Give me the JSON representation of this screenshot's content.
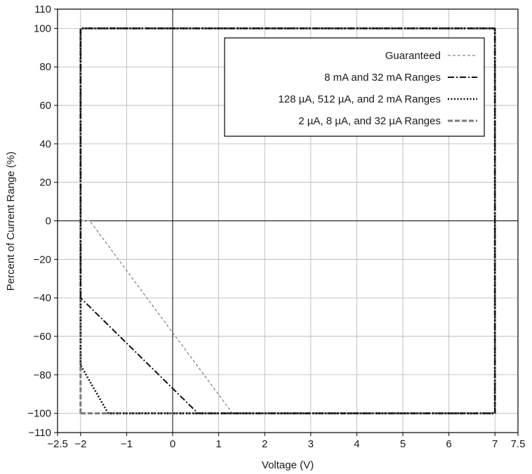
{
  "chart_data": {
    "type": "line",
    "title": "",
    "xlabel": "Voltage (V)",
    "ylabel": "Percent of Current Range (%)",
    "xlim": [
      -2.5,
      7.5
    ],
    "ylim": [
      -110,
      110
    ],
    "xticks": [
      -2.5,
      -2,
      -1,
      0,
      1,
      2,
      3,
      4,
      5,
      6,
      7,
      7.5
    ],
    "xtick_labels": [
      "−2.5",
      "−2",
      "−1",
      "0",
      "1",
      "2",
      "3",
      "4",
      "5",
      "6",
      "7",
      "7.5"
    ],
    "yticks": [
      -110,
      -100,
      -80,
      -60,
      -40,
      -20,
      0,
      20,
      40,
      60,
      80,
      100,
      110
    ],
    "ytick_labels": [
      "−110",
      "−100",
      "−80",
      "−60",
      "−40",
      "−20",
      "0",
      "20",
      "40",
      "60",
      "80",
      "100",
      "110"
    ],
    "grid": true,
    "legend_position": "top-right",
    "series": [
      {
        "name": "Guaranteed",
        "style": "dashed-fine",
        "color": "#888888",
        "x": [
          -1.8,
          -2,
          -2,
          7,
          7,
          1.3,
          -1.8
        ],
        "y": [
          0,
          0,
          100,
          100,
          -100,
          -100,
          0
        ]
      },
      {
        "name": "8 mA and 32 mA Ranges",
        "style": "dash-dot",
        "color": "#111111",
        "x": [
          -2,
          -2,
          7,
          7,
          0.55,
          -2
        ],
        "y": [
          -40,
          100,
          100,
          -100,
          -100,
          -40
        ]
      },
      {
        "name": "128 µA, 512 µA, and 2 mA Ranges",
        "style": "dotted",
        "color": "#111111",
        "x": [
          -2,
          -2,
          7,
          7,
          -1.4,
          -2
        ],
        "y": [
          -75,
          100,
          100,
          -100,
          -100,
          -75
        ]
      },
      {
        "name": "2 µA, 8 µA, and 32 µA Ranges",
        "style": "dashed-heavy",
        "color": "#7a7a7a",
        "x": [
          -2,
          -2,
          7,
          7,
          -2
        ],
        "y": [
          -100,
          100,
          100,
          -100,
          -100
        ]
      }
    ]
  }
}
